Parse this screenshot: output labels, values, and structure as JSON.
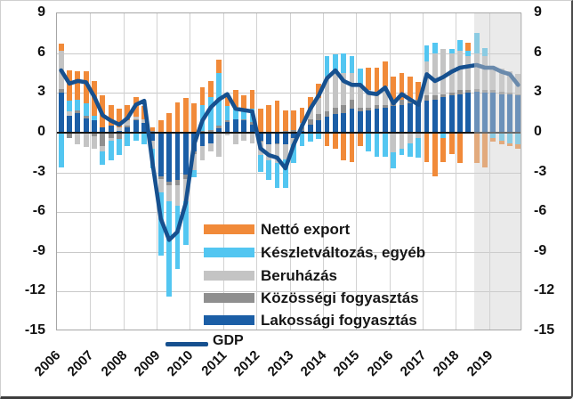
{
  "chart_data": {
    "type": "bar",
    "subtype": "stacked-quarterly-contribution-bars-with-line-overlay",
    "title": "",
    "x_tick_labels": [
      "2006",
      "2007",
      "2008",
      "2009",
      "2010",
      "2011",
      "2012",
      "2013",
      "2014",
      "2015",
      "2016",
      "2017",
      "2018",
      "2019"
    ],
    "quarters_per_year": 4,
    "n_bars": 56,
    "y_ticks": [
      9,
      6,
      3,
      0,
      -3,
      -6,
      -9,
      -12,
      -15
    ],
    "ylim": [
      -15,
      9
    ],
    "grid": "horizontal-gridlines-and-year-separators",
    "legend_position": "inside-bottom-center",
    "forecast_band": {
      "start_bar": 50.2,
      "end_bar": 56,
      "color": "rgba(208,208,208,0.45)"
    },
    "colors": {
      "netto_export": "#f18a39",
      "keszletvaltozas": "#53c6f1",
      "beruhazas": "#c4c4c4",
      "kozossegi": "#8f8f8f",
      "lakossagi": "#1b5ea6",
      "gdp_line": "#16508f",
      "zero_axis": "#161616",
      "gridline": "#c9c9c9"
    },
    "series": [
      {
        "name": "Lakossági fogyasztás",
        "color": "#1b5ea6",
        "values": [
          3.0,
          1.3,
          1.5,
          1.1,
          0.9,
          0.4,
          0.5,
          0.1,
          0.4,
          0.9,
          0.7,
          -0.6,
          -3.3,
          -3.7,
          -3.6,
          -3.2,
          -1.4,
          -1.0,
          -0.8,
          0.3,
          0.8,
          1.0,
          0.9,
          0.6,
          -0.6,
          -0.9,
          -0.8,
          -0.9,
          -0.4,
          0.1,
          0.6,
          0.9,
          1.2,
          1.4,
          1.5,
          1.8,
          1.6,
          1.7,
          1.8,
          1.9,
          2.0,
          2.1,
          2.2,
          2.3,
          2.4,
          2.5,
          2.7,
          2.8,
          2.9,
          3.0,
          3.1,
          3.0,
          3.0,
          2.9,
          2.9,
          2.8
        ]
      },
      {
        "name": "Közösségi fogyasztás",
        "color": "#8f8f8f",
        "values": [
          0.3,
          -0.4,
          0.2,
          0.2,
          -0.3,
          -1.0,
          -0.4,
          -0.5,
          0.1,
          0.1,
          -0.1,
          0.1,
          -0.2,
          -0.3,
          -0.4,
          -0.3,
          -0.2,
          0.1,
          0.2,
          0.2,
          0.1,
          0.0,
          0.1,
          0.2,
          -0.1,
          0.0,
          -0.1,
          0.1,
          0.2,
          0.3,
          0.4,
          0.5,
          0.4,
          0.5,
          0.6,
          0.7,
          0.3,
          0.2,
          0.3,
          0.2,
          0.3,
          0.4,
          0.3,
          0.2,
          0.4,
          0.3,
          0.2,
          0.2,
          0.3,
          0.2,
          0.2,
          0.2,
          0.2,
          0.2,
          0.1,
          0.1
        ]
      },
      {
        "name": "Beruházás",
        "color": "#c4c4c4",
        "values": [
          2.9,
          0.3,
          -0.9,
          -1.1,
          -0.9,
          -0.4,
          -0.2,
          0.3,
          0.4,
          0.2,
          0.3,
          -0.6,
          -1.0,
          -1.2,
          -1.5,
          -1.7,
          -1.2,
          -1.1,
          -0.6,
          -1.8,
          -0.2,
          -0.9,
          -0.6,
          -0.8,
          -1.0,
          -1.2,
          -1.4,
          -1.1,
          -0.5,
          0.3,
          0.8,
          1.2,
          2.6,
          2.8,
          2.4,
          2.0,
          1.7,
          1.3,
          1.0,
          1.4,
          -1.5,
          -1.2,
          -0.8,
          -0.4,
          2.6,
          3.2,
          3.4,
          3.0,
          3.0,
          2.6,
          2.7,
          2.6,
          1.7,
          1.7,
          1.6,
          1.5
        ]
      },
      {
        "name": "Készletváltozás, egyéb",
        "color": "#53c6f1",
        "values": [
          -2.6,
          0.8,
          0.8,
          0.9,
          0.4,
          -1.0,
          -1.5,
          -1.2,
          -1.0,
          -0.6,
          -0.8,
          -1.5,
          -4.8,
          -7.2,
          -4.8,
          -3.3,
          -0.6,
          2.0,
          2.5,
          4.0,
          1.1,
          0.8,
          0.6,
          1.0,
          -1.3,
          -1.5,
          -1.9,
          -2.2,
          -1.4,
          -1.0,
          -0.7,
          -0.5,
          1.6,
          1.2,
          1.5,
          1.3,
          1.2,
          -1.4,
          -1.8,
          -1.8,
          -1.2,
          -0.5,
          -1.0,
          -1.5,
          1.2,
          0.8,
          -0.4,
          0.3,
          0.8,
          0.4,
          1.5,
          0.6,
          -0.4,
          -0.6,
          -0.8,
          -0.9
        ]
      },
      {
        "name": "Nettó export",
        "color": "#f18a39",
        "values": [
          0.5,
          2.3,
          2.1,
          2.4,
          2.6,
          2.4,
          1.6,
          1.4,
          1.2,
          1.5,
          1.0,
          0.3,
          0.9,
          1.5,
          2.3,
          2.6,
          2.2,
          1.3,
          1.2,
          1.0,
          0.9,
          1.4,
          1.2,
          1.4,
          1.8,
          2.1,
          2.4,
          1.6,
          1.5,
          1.2,
          0.9,
          1.1,
          -1.0,
          -1.2,
          -2.1,
          -2.2,
          -1.0,
          1.7,
          1.8,
          1.9,
          1.9,
          2.0,
          1.7,
          1.3,
          -2.2,
          -3.3,
          -1.8,
          -1.6,
          -2.3,
          0.6,
          -2.3,
          -2.6,
          -0.3,
          -0.3,
          -0.2,
          -0.3
        ]
      }
    ],
    "line": {
      "name": "GDP",
      "color": "#16508f",
      "values": [
        4.7,
        3.7,
        3.9,
        3.8,
        2.7,
        1.3,
        0.9,
        0.6,
        1.1,
        2.1,
        2.4,
        -2.3,
        -6.5,
        -8.1,
        -7.5,
        -5.3,
        -0.9,
        0.9,
        1.9,
        2.5,
        2.9,
        1.8,
        1.7,
        1.6,
        -1.2,
        -1.7,
        -1.9,
        -2.7,
        -0.9,
        0.5,
        1.8,
        2.8,
        4.1,
        4.7,
        3.9,
        3.6,
        3.6,
        3.0,
        2.9,
        3.4,
        2.2,
        2.9,
        2.5,
        2.1,
        4.4,
        3.9,
        4.2,
        4.6,
        4.9,
        5.0,
        5.1,
        4.9,
        4.9,
        4.6,
        4.4,
        3.6
      ]
    }
  },
  "legend_display_order": [
    "Nettó export",
    "Készletváltozás, egyéb",
    "Beruházás",
    "Közösségi fogyasztás",
    "Lakossági fogyasztás",
    "GDP"
  ]
}
